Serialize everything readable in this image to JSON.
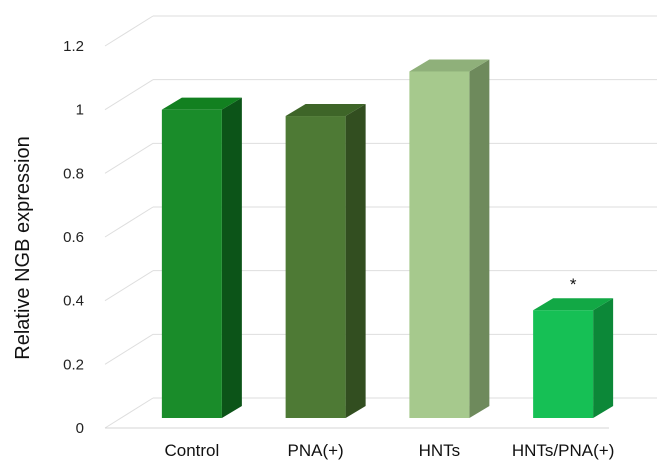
{
  "chart_data": {
    "type": "bar",
    "title": "",
    "xlabel": "",
    "ylabel": "Relative NGB expression",
    "categories": [
      "Control",
      "PNA(+)",
      "HNTs",
      "HNTs/PNA(+)"
    ],
    "values": [
      1.0,
      0.98,
      1.12,
      0.37
    ],
    "ylim": [
      0,
      1.2
    ],
    "yticks": [
      "0",
      "0.2",
      "0.4",
      "0.6",
      "0.8",
      "1",
      "1.2"
    ],
    "grid": true,
    "legend": "none",
    "style": "3d",
    "colors": {
      "front": [
        "#1a8c2a",
        "#4e7a35",
        "#a6c98d",
        "#16c055"
      ],
      "side": [
        "#0c5418",
        "#324e20",
        "#6e8a5c",
        "#0c8838"
      ],
      "top": [
        "#128020",
        "#3e6528",
        "#8fb07a",
        "#12a845"
      ]
    },
    "annotations": [
      {
        "category": "HNTs/PNA(+)",
        "text": "*"
      }
    ]
  }
}
